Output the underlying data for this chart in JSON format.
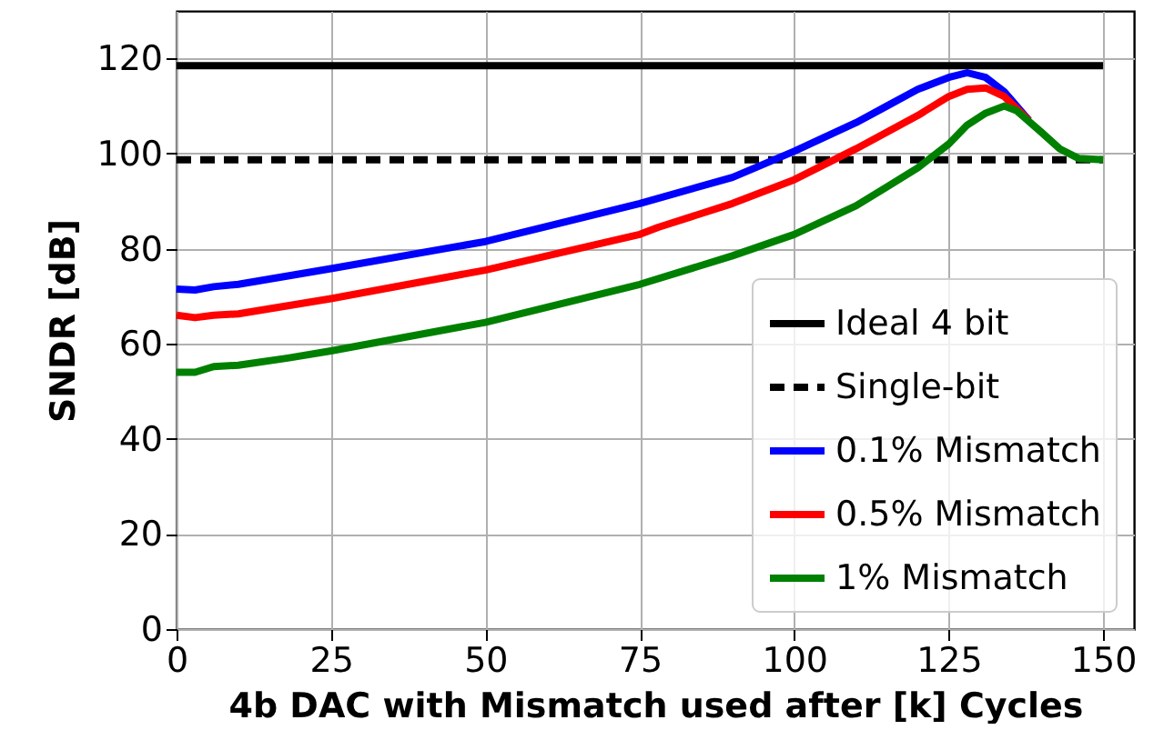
{
  "chart_data": {
    "type": "line",
    "xlabel": "4b DAC with Mismatch used after [k] Cycles",
    "ylabel": "SNDR [dB]",
    "xlim": [
      0,
      155
    ],
    "ylim": [
      0,
      130
    ],
    "xticks": [
      0,
      25,
      50,
      75,
      100,
      125,
      150
    ],
    "yticks": [
      0,
      20,
      40,
      60,
      80,
      100,
      120
    ],
    "grid": true,
    "legend": "bottom right",
    "series": [
      {
        "name": "Ideal 4 bit",
        "color": "#000000",
        "line_style": "solid",
        "x": [
          0,
          150
        ],
        "values": [
          118.5,
          118.5
        ]
      },
      {
        "name": "Single-bit",
        "color": "#000000",
        "line_style": "dashed",
        "x": [
          0,
          150
        ],
        "values": [
          98.7,
          98.7
        ]
      },
      {
        "name": "0.1% Mismatch",
        "color": "#0000ff",
        "line_style": "solid",
        "x": [
          0,
          3,
          6,
          10,
          25,
          50,
          75,
          90,
          100,
          110,
          115,
          120,
          125,
          128,
          131,
          134,
          138
        ],
        "values": [
          71.5,
          71.3,
          72,
          72.5,
          75.8,
          81.5,
          89.5,
          95,
          100.5,
          106.5,
          110,
          113.5,
          116,
          117,
          116,
          113,
          107
        ]
      },
      {
        "name": "0.5% Mismatch",
        "color": "#ff0000",
        "line_style": "solid",
        "x": [
          0,
          3,
          6,
          10,
          25,
          50,
          75,
          78,
          90,
          100,
          110,
          120,
          125,
          128,
          131,
          134,
          138
        ],
        "values": [
          66,
          65.5,
          66,
          66.3,
          69.5,
          75.5,
          83,
          84.5,
          89.5,
          94.5,
          101,
          108,
          112,
          113.5,
          113.8,
          112,
          107
        ]
      },
      {
        "name": "1% Mismatch",
        "color": "#008000",
        "line_style": "solid",
        "x": [
          0,
          3,
          6,
          10,
          18,
          25,
          50,
          75,
          90,
          100,
          110,
          115,
          120,
          125,
          128,
          131,
          134,
          136,
          140,
          143,
          146,
          150
        ],
        "values": [
          54,
          54,
          55.2,
          55.5,
          57,
          58.5,
          64.5,
          72.5,
          78.5,
          83,
          89,
          93,
          97,
          102,
          106,
          108.5,
          110,
          109,
          104.5,
          101,
          99,
          98.7
        ]
      }
    ]
  }
}
